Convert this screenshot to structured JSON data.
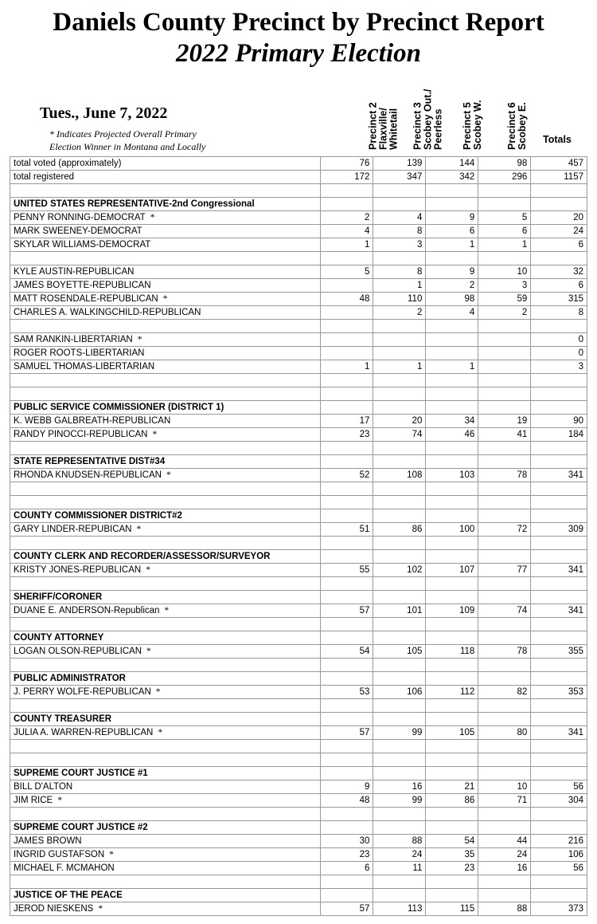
{
  "header": {
    "title": "Daniels County Precinct by Precinct Report",
    "subtitle": "2022 Primary  Election",
    "date": "Tues., June 7, 2022",
    "note_line1": "* Indicates  Projected Overall Primary",
    "note_line2": "Election Winner in Montana and Locally"
  },
  "columns": {
    "p2": "Precinct 2 Flaxville/ Whitetail",
    "p3": "Precinct 3 Scobey Out./ Peerless",
    "p5": "Precinct 5 Scobey W.",
    "p6": "Precinct 6 Scobey E.",
    "totals": "Totals"
  },
  "rows": [
    {
      "type": "data",
      "label": "total voted (approximately)",
      "p2": "76",
      "p3": "139",
      "p5": "144",
      "p6": "98",
      "t": "457"
    },
    {
      "type": "data",
      "label": "total registered",
      "p2": "172",
      "p3": "347",
      "p5": "342",
      "p6": "296",
      "t": "1157"
    },
    {
      "type": "blank"
    },
    {
      "type": "section",
      "label": "UNITED STATES REPRESENTATIVE-2nd Congressional"
    },
    {
      "type": "data",
      "label": "PENNY RONNING-DEMOCRAT",
      "winner": true,
      "p2": "2",
      "p3": "4",
      "p5": "9",
      "p6": "5",
      "t": "20"
    },
    {
      "type": "data",
      "label": "MARK SWEENEY-DEMOCRAT",
      "p2": "4",
      "p3": "8",
      "p5": "6",
      "p6": "6",
      "t": "24"
    },
    {
      "type": "data",
      "label": "SKYLAR WILLIAMS-DEMOCRAT",
      "p2": "1",
      "p3": "3",
      "p5": "1",
      "p6": "1",
      "t": "6"
    },
    {
      "type": "blank"
    },
    {
      "type": "data",
      "label": "KYLE AUSTIN-REPUBLICAN",
      "p2": "5",
      "p3": "8",
      "p5": "9",
      "p6": "10",
      "t": "32"
    },
    {
      "type": "data",
      "label": "JAMES BOYETTE-REPUBLICAN",
      "p2": "",
      "p3": "1",
      "p5": "2",
      "p6": "3",
      "t": "6"
    },
    {
      "type": "data",
      "label": "MATT ROSENDALE-REPUBLICAN",
      "winner": true,
      "p2": "48",
      "p3": "110",
      "p5": "98",
      "p6": "59",
      "t": "315"
    },
    {
      "type": "data",
      "label": "CHARLES A. WALKINGCHILD-REPUBLICAN",
      "p2": "",
      "p3": "2",
      "p5": "4",
      "p6": "2",
      "t": "8"
    },
    {
      "type": "blank"
    },
    {
      "type": "data",
      "label": "SAM RANKIN-LIBERTARIAN",
      "winner": true,
      "p2": "",
      "p3": "",
      "p5": "",
      "p6": "",
      "t": "0"
    },
    {
      "type": "data",
      "label": "ROGER ROOTS-LIBERTARIAN",
      "p2": "",
      "p3": "",
      "p5": "",
      "p6": "",
      "t": "0"
    },
    {
      "type": "data",
      "label": "SAMUEL THOMAS-LIBERTARIAN",
      "p2": "1",
      "p3": "1",
      "p5": "1",
      "p6": "",
      "t": "3"
    },
    {
      "type": "blank"
    },
    {
      "type": "blank"
    },
    {
      "type": "section",
      "label": "PUBLIC SERVICE COMMISSIONER (DISTRICT 1)"
    },
    {
      "type": "data",
      "label": "K. WEBB GALBREATH-REPUBLICAN",
      "p2": "17",
      "p3": "20",
      "p5": "34",
      "p6": "19",
      "t": "90"
    },
    {
      "type": "data",
      "label": "RANDY PINOCCI-REPUBLICAN",
      "winner": true,
      "p2": "23",
      "p3": "74",
      "p5": "46",
      "p6": "41",
      "t": "184"
    },
    {
      "type": "blank"
    },
    {
      "type": "section",
      "label": "STATE REPRESENTATIVE DIST#34"
    },
    {
      "type": "data",
      "label": "RHONDA KNUDSEN-REPUBLICAN",
      "winner": true,
      "p2": "52",
      "p3": "108",
      "p5": "103",
      "p6": "78",
      "t": "341"
    },
    {
      "type": "blank"
    },
    {
      "type": "blank"
    },
    {
      "type": "section",
      "label": "COUNTY COMMISSIONER DISTRICT#2"
    },
    {
      "type": "data",
      "label": "GARY LINDER-REPUBICAN",
      "winner": true,
      "p2": "51",
      "p3": "86",
      "p5": "100",
      "p6": "72",
      "t": "309"
    },
    {
      "type": "blank"
    },
    {
      "type": "section",
      "label": "COUNTY CLERK AND RECORDER/ASSESSOR/SURVEYOR"
    },
    {
      "type": "data",
      "label": "KRISTY JONES-REPUBLICAN",
      "winner": true,
      "p2": "55",
      "p3": "102",
      "p5": "107",
      "p6": "77",
      "t": "341"
    },
    {
      "type": "blank"
    },
    {
      "type": "section",
      "label": "SHERIFF/CORONER"
    },
    {
      "type": "data",
      "label": "DUANE E. ANDERSON-Republican",
      "winner": true,
      "p2": "57",
      "p3": "101",
      "p5": "109",
      "p6": "74",
      "t": "341"
    },
    {
      "type": "blank"
    },
    {
      "type": "section",
      "label": "COUNTY ATTORNEY"
    },
    {
      "type": "data",
      "label": "LOGAN OLSON-REPUBLICAN",
      "winner": true,
      "p2": "54",
      "p3": "105",
      "p5": "118",
      "p6": "78",
      "t": "355"
    },
    {
      "type": "blank"
    },
    {
      "type": "section",
      "label": "PUBLIC ADMINISTRATOR"
    },
    {
      "type": "data",
      "label": "J. PERRY WOLFE-REPUBLICAN",
      "winner": true,
      "p2": "53",
      "p3": "106",
      "p5": "112",
      "p6": "82",
      "t": "353"
    },
    {
      "type": "blank"
    },
    {
      "type": "section",
      "label": "COUNTY TREASURER"
    },
    {
      "type": "data",
      "label": "JULIA A. WARREN-REPUBLICAN",
      "winner": true,
      "p2": "57",
      "p3": "99",
      "p5": "105",
      "p6": "80",
      "t": "341"
    },
    {
      "type": "blank"
    },
    {
      "type": "blank"
    },
    {
      "type": "section",
      "label": "SUPREME COURT JUSTICE #1"
    },
    {
      "type": "data",
      "label": "BILL D'ALTON",
      "p2": "9",
      "p3": "16",
      "p5": "21",
      "p6": "10",
      "t": "56"
    },
    {
      "type": "data",
      "label": "JIM RICE",
      "winner": true,
      "p2": "48",
      "p3": "99",
      "p5": "86",
      "p6": "71",
      "t": "304"
    },
    {
      "type": "blank"
    },
    {
      "type": "section",
      "label": "SUPREME COURT JUSTICE #2"
    },
    {
      "type": "data",
      "label": "JAMES BROWN",
      "p2": "30",
      "p3": "88",
      "p5": "54",
      "p6": "44",
      "t": "216"
    },
    {
      "type": "data",
      "label": "INGRID GUSTAFSON",
      "winner": true,
      "p2": "23",
      "p3": "24",
      "p5": "35",
      "p6": "24",
      "t": "106"
    },
    {
      "type": "data",
      "label": "MICHAEL F. MCMAHON",
      "p2": "6",
      "p3": "11",
      "p5": "23",
      "p6": "16",
      "t": "56"
    },
    {
      "type": "blank"
    },
    {
      "type": "section",
      "label": "JUSTICE OF THE PEACE"
    },
    {
      "type": "data",
      "label": "JEROD NIESKENS",
      "winner": true,
      "p2": "57",
      "p3": "113",
      "p5": "115",
      "p6": "88",
      "t": "373"
    }
  ],
  "style": {
    "winner_symbol": "*",
    "font_body": "Arial",
    "font_header": "Times New Roman",
    "border_color": "#999999",
    "background": "#ffffff"
  }
}
